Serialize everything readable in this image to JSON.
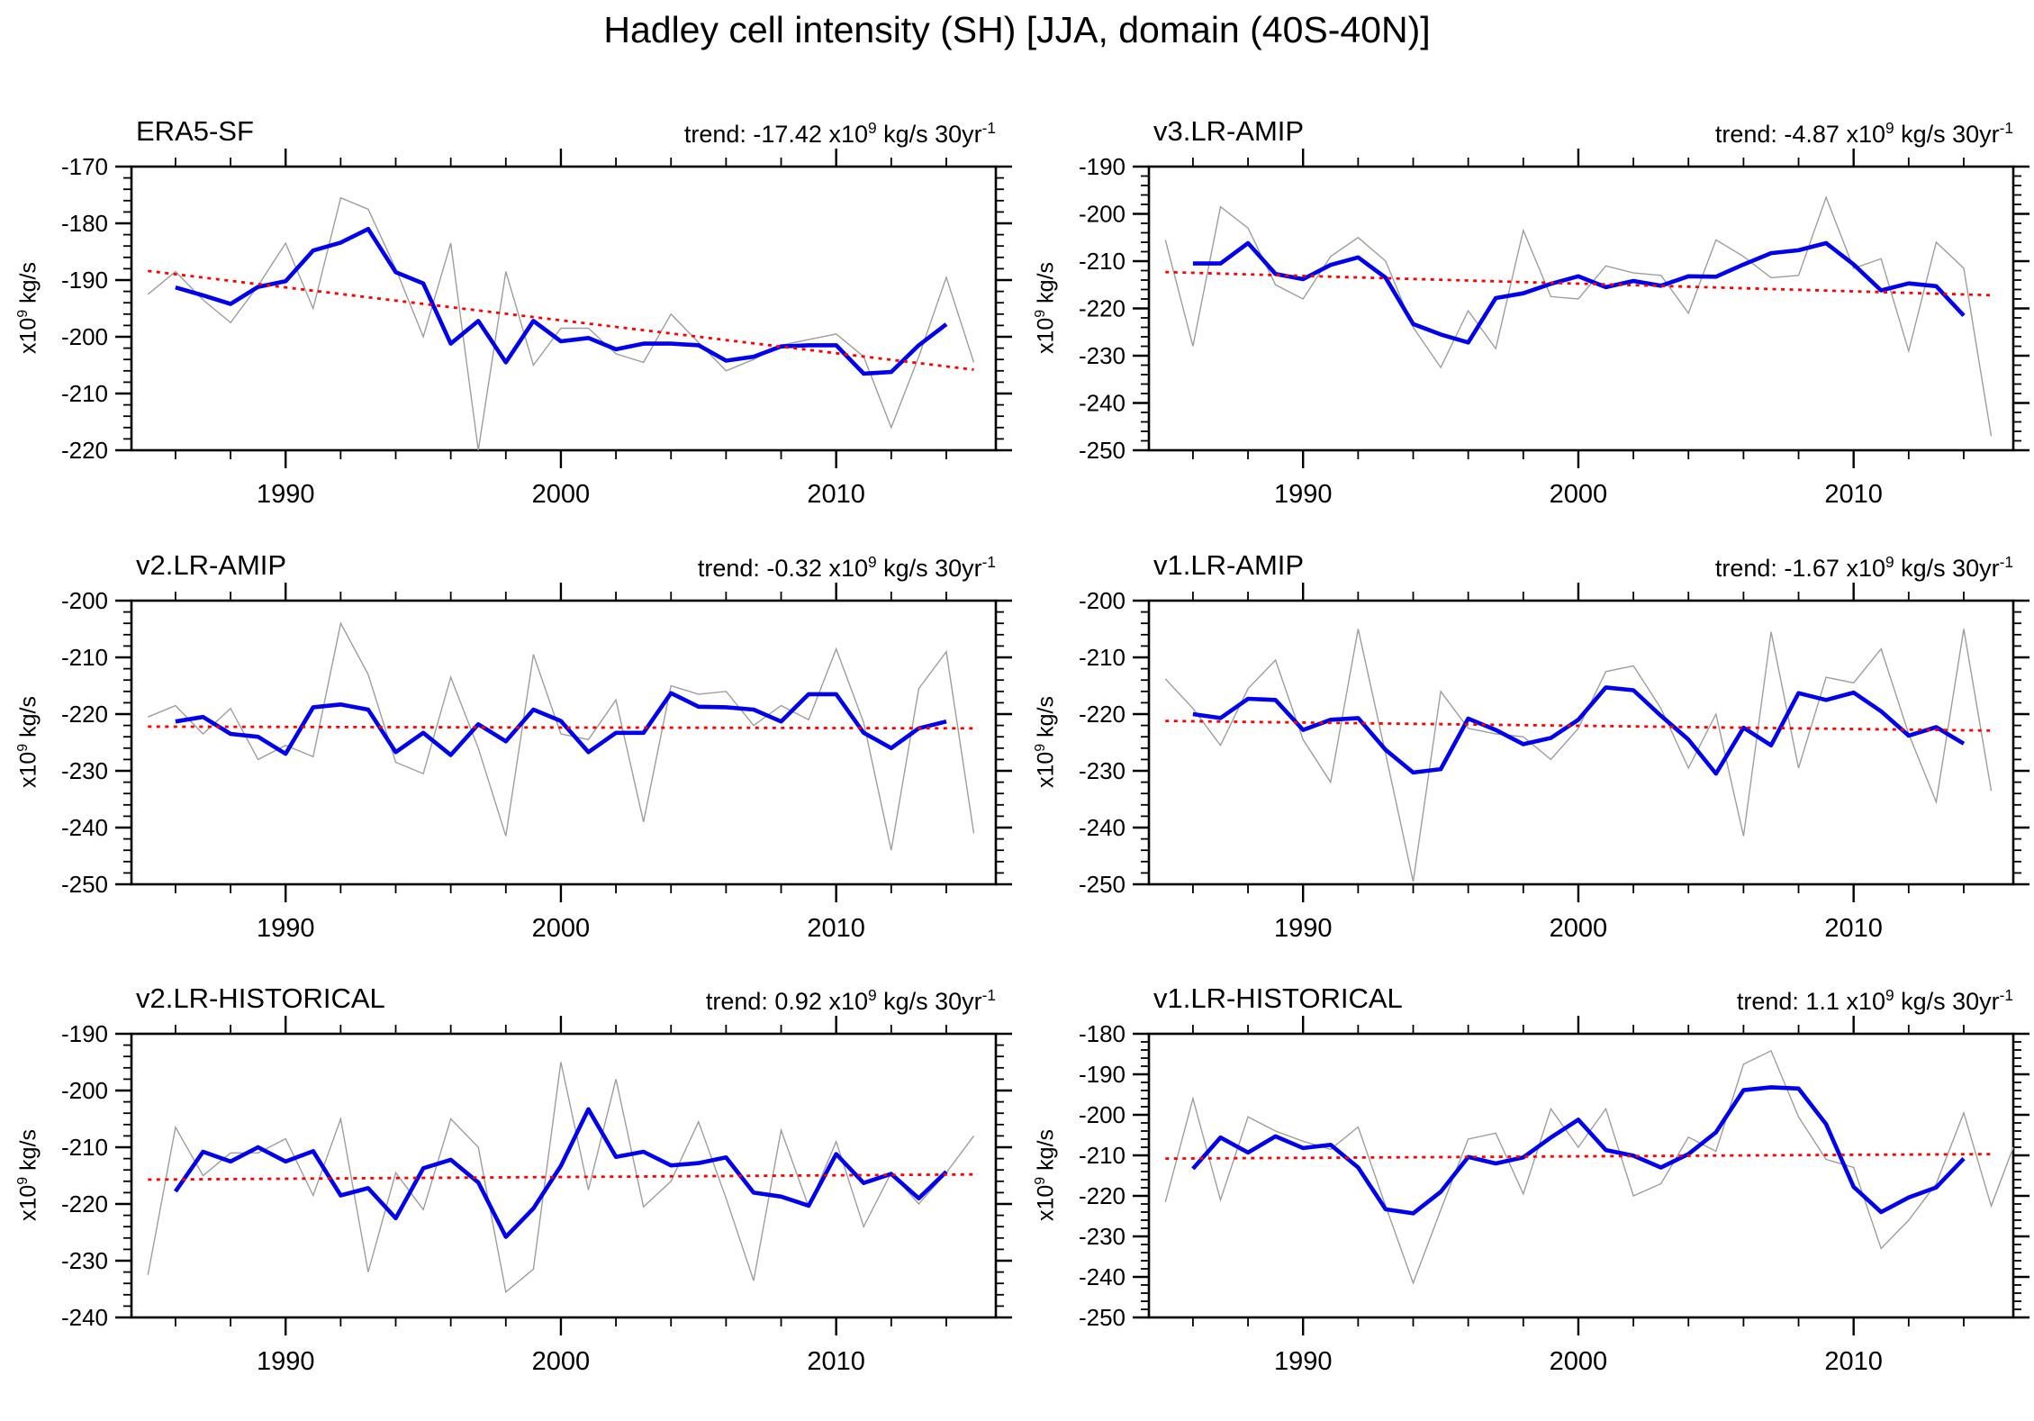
{
  "title": "Hadley cell intensity (SH) [JJA, domain (40S-40N)]",
  "ylabel": {
    "t1": "x10",
    "s1": "9",
    "t2": " kg/s"
  },
  "colors": {
    "raw": "#9e9e9e",
    "smoothed": "#0000ee",
    "trend": "#ff0000",
    "axis": "#000000",
    "text": "#000000"
  },
  "axis": {
    "xlim": [
      1984.4,
      2015.8
    ],
    "xticks_major": [
      1990,
      2000,
      2010
    ],
    "xtick_labels": [
      "1990",
      "2000",
      "2010"
    ],
    "xminor_start": 1986,
    "xminor_step": 2,
    "xminor_end": 2014
  },
  "chart_data": [
    {
      "type": "line",
      "name": "ERA5-SF",
      "trend_label": {
        "t1": "trend: -17.42 x10",
        "s1": "9",
        "t2": " kg/s 30yr",
        "s2": "-1"
      },
      "trend_value_per_30yr": -17.42,
      "ylim": [
        -220,
        -170
      ],
      "ytick_major": 10,
      "ytick_minor": 2,
      "series": [
        {
          "name": "annual",
          "x": [
            1985,
            1986,
            1987,
            1988,
            1989,
            1990,
            1991,
            1992,
            1993,
            1994,
            1995,
            1996,
            1997,
            1998,
            1999,
            2000,
            2001,
            2002,
            2003,
            2004,
            2005,
            2006,
            2007,
            2008,
            2009,
            2010,
            2011,
            2012,
            2013,
            2014,
            2015
          ],
          "y": [
            -192.5,
            -188.5,
            -193.5,
            -197.5,
            -191,
            -183.5,
            -195,
            -175.5,
            -177.5,
            -188,
            -200,
            -183.5,
            -220,
            -188.5,
            -205,
            -198.5,
            -198.5,
            -203,
            -204.5,
            -196,
            -201,
            -206,
            -204,
            -201.5,
            -200.5,
            -199.5,
            -203.5,
            -216,
            -203.5,
            -189.5,
            -204.5
          ]
        },
        {
          "name": "smoothed",
          "x": [
            1986,
            1987,
            1988,
            1989,
            1990,
            1991,
            1992,
            1993,
            1994,
            1995,
            1996,
            1997,
            1998,
            1999,
            2000,
            2001,
            2002,
            2003,
            2004,
            2005,
            2006,
            2007,
            2008,
            2009,
            2010,
            2011,
            2012,
            2013,
            2014
          ],
          "y": [
            -191.3,
            -192.7,
            -194.2,
            -191.2,
            -190.2,
            -184.8,
            -183.4,
            -181,
            -188.6,
            -190.6,
            -201.2,
            -197.2,
            -204.5,
            -197.2,
            -200.8,
            -200.2,
            -202.2,
            -201.2,
            -201.2,
            -201.5,
            -204.2,
            -203.5,
            -201.7,
            -201.5,
            -201.5,
            -206.5,
            -206.2,
            -201.5,
            -197.8
          ]
        },
        {
          "name": "linear-trend",
          "x": [
            1985,
            2015
          ],
          "y": [
            -188.4,
            -205.8
          ]
        }
      ]
    },
    {
      "type": "line",
      "name": "v3.LR-AMIP",
      "trend_label": {
        "t1": "trend: -4.87 x10",
        "s1": "9",
        "t2": " kg/s 30yr",
        "s2": "-1"
      },
      "trend_value_per_30yr": -4.87,
      "ylim": [
        -250,
        -190
      ],
      "ytick_major": 10,
      "ytick_minor": 2,
      "series": [
        {
          "name": "annual",
          "x": [
            1985,
            1986,
            1987,
            1988,
            1989,
            1990,
            1991,
            1992,
            1993,
            1994,
            1995,
            1996,
            1997,
            1998,
            1999,
            2000,
            2001,
            2002,
            2003,
            2004,
            2005,
            2006,
            2007,
            2008,
            2009,
            2010,
            2011,
            2012,
            2013,
            2014,
            2015
          ],
          "y": [
            -205.5,
            -228,
            -198.5,
            -203,
            -215,
            -218,
            -209,
            -205,
            -210,
            -224,
            -232.5,
            -220.5,
            -228.5,
            -203.5,
            -217.5,
            -218,
            -211,
            -212.5,
            -213,
            -221,
            -205.5,
            -209,
            -213.5,
            -213,
            -196.5,
            -211.5,
            -209.5,
            -229,
            -206,
            -211.5,
            -247
          ]
        },
        {
          "name": "smoothed",
          "x": [
            1986,
            1987,
            1988,
            1989,
            1990,
            1991,
            1992,
            1993,
            1994,
            1995,
            1996,
            1997,
            1998,
            1999,
            2000,
            2001,
            2002,
            2003,
            2004,
            2005,
            2006,
            2007,
            2008,
            2009,
            2010,
            2011,
            2012,
            2013,
            2014
          ],
          "y": [
            -210.5,
            -210.5,
            -206.2,
            -212.7,
            -213.8,
            -210.8,
            -209.2,
            -213.5,
            -223.3,
            -225.5,
            -227.2,
            -217.8,
            -216.8,
            -214.8,
            -213.2,
            -215.5,
            -214.2,
            -215.2,
            -213.2,
            -213.3,
            -210.7,
            -208.3,
            -207.7,
            -206.2,
            -210.7,
            -216.2,
            -214.7,
            -215.3,
            -221.5
          ]
        },
        {
          "name": "linear-trend",
          "x": [
            1985,
            2015
          ],
          "y": [
            -212.3,
            -217.2
          ]
        }
      ]
    },
    {
      "type": "line",
      "name": "v2.LR-AMIP",
      "trend_label": {
        "t1": "trend: -0.32 x10",
        "s1": "9",
        "t2": " kg/s 30yr",
        "s2": "-1"
      },
      "trend_value_per_30yr": -0.32,
      "ylim": [
        -250,
        -200
      ],
      "ytick_major": 10,
      "ytick_minor": 2,
      "series": [
        {
          "name": "annual",
          "x": [
            1985,
            1986,
            1987,
            1988,
            1989,
            1990,
            1991,
            1992,
            1993,
            1994,
            1995,
            1996,
            1997,
            1998,
            1999,
            2000,
            2001,
            2002,
            2003,
            2004,
            2005,
            2006,
            2007,
            2008,
            2009,
            2010,
            2011,
            2012,
            2013,
            2014,
            2015
          ],
          "y": [
            -220.5,
            -218.5,
            -223.5,
            -219,
            -228,
            -225.5,
            -227.5,
            -204,
            -213,
            -228.5,
            -230.5,
            -213.5,
            -226,
            -241.5,
            -209.5,
            -223.5,
            -224.5,
            -217.5,
            -239,
            -215,
            -216.5,
            -216,
            -222,
            -218.5,
            -221,
            -208.5,
            -221.5,
            -244,
            -215.5,
            -209,
            -241
          ]
        },
        {
          "name": "smoothed",
          "x": [
            1986,
            1987,
            1988,
            1989,
            1990,
            1991,
            1992,
            1993,
            1994,
            1995,
            1996,
            1997,
            1998,
            1999,
            2000,
            2001,
            2002,
            2003,
            2004,
            2005,
            2006,
            2007,
            2008,
            2009,
            2010,
            2011,
            2012,
            2013,
            2014
          ],
          "y": [
            -221.3,
            -220.5,
            -223.5,
            -224,
            -227,
            -218.8,
            -218.3,
            -219.2,
            -226.7,
            -223.3,
            -227.2,
            -221.8,
            -224.8,
            -219.2,
            -221.2,
            -226.7,
            -223.3,
            -223.3,
            -216.3,
            -218.7,
            -218.8,
            -219.2,
            -221.3,
            -216.5,
            -216.5,
            -223.3,
            -226,
            -222.5,
            -221.3
          ]
        },
        {
          "name": "linear-trend",
          "x": [
            1985,
            2015
          ],
          "y": [
            -222.2,
            -222.5
          ]
        }
      ]
    },
    {
      "type": "line",
      "name": "v1.LR-AMIP",
      "trend_label": {
        "t1": "trend: -1.67 x10",
        "s1": "9",
        "t2": " kg/s 30yr",
        "s2": "-1"
      },
      "trend_value_per_30yr": -1.67,
      "ylim": [
        -250,
        -200
      ],
      "ytick_major": 10,
      "ytick_minor": 2,
      "series": [
        {
          "name": "annual",
          "x": [
            1985,
            1986,
            1987,
            1988,
            1989,
            1990,
            1991,
            1992,
            1993,
            1994,
            1995,
            1996,
            1997,
            1998,
            1999,
            2000,
            2001,
            2002,
            2003,
            2004,
            2005,
            2006,
            2007,
            2008,
            2009,
            2010,
            2011,
            2012,
            2013,
            2014,
            2015
          ],
          "y": [
            -213.8,
            -219,
            -225.5,
            -215.5,
            -210.5,
            -224.5,
            -232,
            -205,
            -227,
            -249.5,
            -216,
            -222.5,
            -223.5,
            -224,
            -228,
            -222.5,
            -212.5,
            -211.5,
            -219,
            -229.5,
            -220,
            -241.5,
            -205.5,
            -229.5,
            -213.5,
            -214.5,
            -208.5,
            -223.5,
            -235.5,
            -205,
            -233.5
          ]
        },
        {
          "name": "smoothed",
          "x": [
            1986,
            1987,
            1988,
            1989,
            1990,
            1991,
            1992,
            1993,
            1994,
            1995,
            1996,
            1997,
            1998,
            1999,
            2000,
            2001,
            2002,
            2003,
            2004,
            2005,
            2006,
            2007,
            2008,
            2009,
            2010,
            2011,
            2012,
            2013,
            2014
          ],
          "y": [
            -220,
            -220.7,
            -217.3,
            -217.5,
            -222.8,
            -221,
            -220.7,
            -226.3,
            -230.3,
            -229.7,
            -220.8,
            -222.8,
            -225.3,
            -224.2,
            -221,
            -215.3,
            -215.8,
            -220.3,
            -224.5,
            -230.5,
            -222.4,
            -225.5,
            -216.3,
            -217.5,
            -216.2,
            -219.5,
            -223.8,
            -222.3,
            -225.2
          ]
        },
        {
          "name": "linear-trend",
          "x": [
            1985,
            2015
          ],
          "y": [
            -221.2,
            -222.9
          ]
        }
      ]
    },
    {
      "type": "line",
      "name": "v2.LR-HISTORICAL",
      "trend_label": {
        "t1": "trend: 0.92 x10",
        "s1": "9",
        "t2": " kg/s 30yr",
        "s2": "-1"
      },
      "trend_value_per_30yr": 0.92,
      "ylim": [
        -240,
        -190
      ],
      "ytick_major": 10,
      "ytick_minor": 2,
      "series": [
        {
          "name": "annual",
          "x": [
            1985,
            1986,
            1987,
            1988,
            1989,
            1990,
            1991,
            1992,
            1993,
            1994,
            1995,
            1996,
            1997,
            1998,
            1999,
            2000,
            2001,
            2002,
            2003,
            2004,
            2005,
            2006,
            2007,
            2008,
            2009,
            2010,
            2011,
            2012,
            2013,
            2014,
            2015
          ],
          "y": [
            -232.5,
            -206.5,
            -215,
            -211,
            -211,
            -208.5,
            -218.5,
            -205,
            -232,
            -214.5,
            -221,
            -205,
            -210,
            -235.5,
            -231.5,
            -195,
            -217.5,
            -198,
            -220.5,
            -216,
            -205.5,
            -219,
            -233.5,
            -207,
            -220.5,
            -209,
            -224,
            -214.5,
            -220,
            -214.5,
            -208
          ]
        },
        {
          "name": "smoothed",
          "x": [
            1986,
            1987,
            1988,
            1989,
            1990,
            1991,
            1992,
            1993,
            1994,
            1995,
            1996,
            1997,
            1998,
            1999,
            2000,
            2001,
            2002,
            2003,
            2004,
            2005,
            2006,
            2007,
            2008,
            2009,
            2010,
            2011,
            2012,
            2013,
            2014
          ],
          "y": [
            -217.8,
            -210.8,
            -212.5,
            -210,
            -212.5,
            -210.7,
            -218.5,
            -217.2,
            -222.5,
            -213.7,
            -212.2,
            -216.2,
            -225.8,
            -220.8,
            -213.3,
            -203.3,
            -211.7,
            -210.8,
            -213.2,
            -212.8,
            -211.8,
            -218,
            -218.7,
            -220.3,
            -211.2,
            -216.3,
            -214.7,
            -219,
            -214.3
          ]
        },
        {
          "name": "linear-trend",
          "x": [
            1985,
            2015
          ],
          "y": [
            -215.7,
            -214.8
          ]
        }
      ]
    },
    {
      "type": "line",
      "name": "v1.LR-HISTORICAL",
      "trend_label": {
        "t1": "trend: 1.1 x10",
        "s1": "9",
        "t2": " kg/s 30yr",
        "s2": "-1"
      },
      "trend_value_per_30yr": 1.1,
      "ylim": [
        -250,
        -180
      ],
      "ytick_major": 10,
      "ytick_minor": 2,
      "series": [
        {
          "name": "annual",
          "x": [
            1985,
            1986,
            1987,
            1988,
            1989,
            1990,
            1991,
            1992,
            1993,
            1994,
            1995,
            1996,
            1997,
            1998,
            1999,
            2000,
            2001,
            2002,
            2003,
            2004,
            2005,
            2006,
            2007,
            2008,
            2009,
            2010,
            2011,
            2012,
            2013,
            2014,
            2015,
            2015.8
          ],
          "y": [
            -221.5,
            -196,
            -221,
            -200.5,
            -204,
            -206.5,
            -208.5,
            -203,
            -222.5,
            -241.5,
            -223.5,
            -206,
            -204.5,
            -219.5,
            -198.5,
            -208,
            -198.5,
            -220,
            -217,
            -205.5,
            -209,
            -187.5,
            -184.2,
            -200.5,
            -211,
            -213,
            -233,
            -226,
            -217,
            -199.5,
            -222.5,
            -208
          ]
        },
        {
          "name": "smoothed",
          "x": [
            1986,
            1987,
            1988,
            1989,
            1990,
            1991,
            1992,
            1993,
            1994,
            1995,
            1996,
            1997,
            1998,
            1999,
            2000,
            2001,
            2002,
            2003,
            2004,
            2005,
            2006,
            2007,
            2008,
            2009,
            2010,
            2011,
            2012,
            2013,
            2014
          ],
          "y": [
            -213.3,
            -205.6,
            -209.3,
            -205.3,
            -208.2,
            -207.4,
            -213,
            -223.3,
            -224.3,
            -219,
            -210.4,
            -212,
            -210.5,
            -205.6,
            -201.2,
            -208.7,
            -210.1,
            -213,
            -209.7,
            -204.3,
            -193.9,
            -193.2,
            -193.5,
            -202.3,
            -217.8,
            -224,
            -220.4,
            -217.9,
            -210.8
          ]
        },
        {
          "name": "linear-trend",
          "x": [
            1985,
            2015
          ],
          "y": [
            -210.8,
            -209.7
          ]
        }
      ]
    }
  ]
}
